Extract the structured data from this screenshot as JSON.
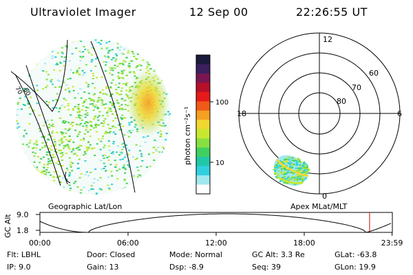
{
  "header": {
    "instrument": "Ultraviolet Imager",
    "date": "12 Sep 00",
    "time": "22:26:55 UT"
  },
  "geographic_panel": {
    "label": "Geographic Lat/Lon",
    "grid_labels": [
      "70",
      "60"
    ]
  },
  "colorbar": {
    "unit_label": "photon cm⁻²s⁻¹",
    "ticks": [
      "100",
      "10"
    ],
    "colors": [
      "#1a1a3a",
      "#3b1f5e",
      "#7a1650",
      "#b8102a",
      "#e61a1a",
      "#f05a18",
      "#f5a020",
      "#f0d830",
      "#c8e830",
      "#88e040",
      "#40d060",
      "#20c8a8",
      "#30d0e0",
      "#a0e8f0",
      "#ffffff"
    ]
  },
  "polar_panel": {
    "label": "Apex MLat/MLT",
    "mlt_labels": {
      "top": "12",
      "left": "18",
      "right": "6",
      "bottom": "0"
    },
    "lat_labels": [
      "60",
      "70",
      "80"
    ]
  },
  "altitude_plot": {
    "axis_title": "GC Alt",
    "y_ticks": [
      "9.0",
      "1.8"
    ],
    "x_ticks": [
      "00:00",
      "06:00",
      "12:00",
      "18:00",
      "23:59"
    ],
    "marker_color": "#cc0000",
    "marker_time_hours": 22.45
  },
  "status": {
    "row1": [
      {
        "label": "Flt:",
        "value": "LBHL"
      },
      {
        "label": "Door:",
        "value": "Closed"
      },
      {
        "label": "Mode:",
        "value": "Normal"
      },
      {
        "label": "GC Alt:",
        "value": "3.3 Re"
      },
      {
        "label": "GLat:",
        "value": "-63.8"
      }
    ],
    "row2": [
      {
        "label": "IP:",
        "value": "9.0"
      },
      {
        "label": "Gain:",
        "value": "13"
      },
      {
        "label": "Dsp:",
        "value": "-8.9"
      },
      {
        "label": "Seq:",
        "value": "39"
      },
      {
        "label": "GLon:",
        "value": "19.9"
      }
    ]
  }
}
